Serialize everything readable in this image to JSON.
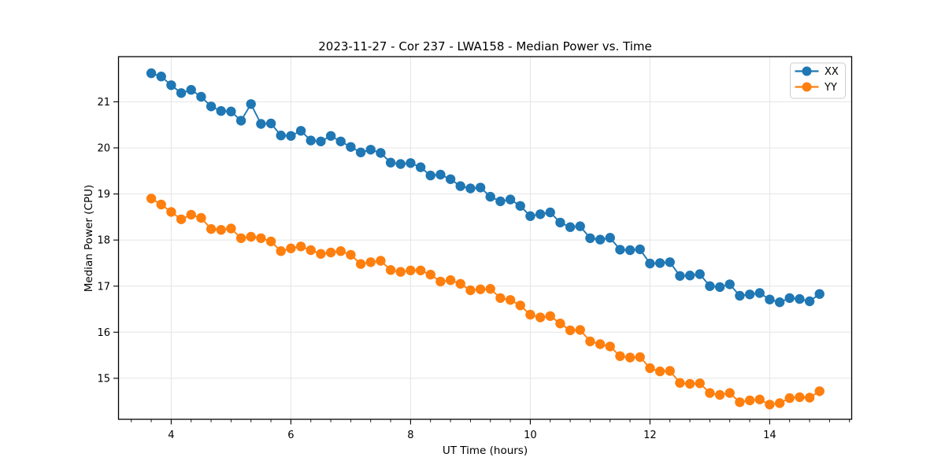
{
  "figure": {
    "title": "2023-11-27 - Cor 237 - LWA158 - Median Power vs. Time",
    "xlabel": "UT Time (hours)",
    "ylabel": "Median Power (CPU)"
  },
  "chart_data": {
    "type": "line",
    "title": "2023-11-27 - Cor 237 - LWA158 - Median Power vs. Time",
    "xlabel": "UT Time (hours)",
    "ylabel": "Median Power (CPU)",
    "grid": true,
    "legend_position": "upper right",
    "xlim": [
      3.12,
      15.37
    ],
    "ylim": [
      14.11,
      21.98
    ],
    "x_ticks": [
      4,
      6,
      8,
      10,
      12,
      14
    ],
    "y_ticks": [
      15,
      16,
      17,
      18,
      19,
      20,
      21
    ],
    "x_minor_step": 0.3333333,
    "marker": "o",
    "x": [
      3.667,
      3.833,
      4.0,
      4.167,
      4.333,
      4.5,
      4.667,
      4.833,
      5.0,
      5.167,
      5.333,
      5.5,
      5.667,
      5.833,
      6.0,
      6.167,
      6.333,
      6.5,
      6.667,
      6.833,
      7.0,
      7.167,
      7.333,
      7.5,
      7.667,
      7.833,
      8.0,
      8.167,
      8.333,
      8.5,
      8.667,
      8.833,
      9.0,
      9.167,
      9.333,
      9.5,
      9.667,
      9.833,
      10.0,
      10.167,
      10.333,
      10.5,
      10.667,
      10.833,
      11.0,
      11.167,
      11.333,
      11.5,
      11.667,
      11.833,
      12.0,
      12.167,
      12.333,
      12.5,
      12.667,
      12.833,
      13.0,
      13.167,
      13.333,
      13.5,
      13.667,
      13.833,
      14.0,
      14.167,
      14.333,
      14.5,
      14.667,
      14.833
    ],
    "series": [
      {
        "name": "XX",
        "color": "#1f77b4",
        "values": [
          21.62,
          21.55,
          21.36,
          21.19,
          21.26,
          21.11,
          20.9,
          20.8,
          20.79,
          20.59,
          20.95,
          20.52,
          20.53,
          20.27,
          20.26,
          20.37,
          20.16,
          20.14,
          20.26,
          20.14,
          20.02,
          19.9,
          19.96,
          19.89,
          19.68,
          19.65,
          19.67,
          19.58,
          19.4,
          19.42,
          19.32,
          19.17,
          19.12,
          19.14,
          18.94,
          18.84,
          18.88,
          18.74,
          18.52,
          18.56,
          18.6,
          18.38,
          18.28,
          18.3,
          18.04,
          18.01,
          18.05,
          17.79,
          17.78,
          17.8,
          17.49,
          17.5,
          17.52,
          17.22,
          17.23,
          17.26,
          17.0,
          16.98,
          17.04,
          16.79,
          16.82,
          16.85,
          16.71,
          16.65,
          16.74,
          16.72,
          16.67,
          16.83
        ]
      },
      {
        "name": "YY",
        "color": "#ff7f0e",
        "values": [
          18.9,
          18.77,
          18.61,
          18.45,
          18.55,
          18.48,
          18.24,
          18.22,
          18.25,
          18.04,
          18.07,
          18.04,
          17.97,
          17.76,
          17.82,
          17.86,
          17.78,
          17.7,
          17.73,
          17.76,
          17.68,
          17.48,
          17.52,
          17.55,
          17.35,
          17.31,
          17.34,
          17.34,
          17.25,
          17.1,
          17.13,
          17.05,
          16.91,
          16.93,
          16.94,
          16.74,
          16.7,
          16.58,
          16.38,
          16.32,
          16.35,
          16.19,
          16.04,
          16.05,
          15.8,
          15.74,
          15.69,
          15.48,
          15.45,
          15.46,
          15.22,
          15.15,
          15.16,
          14.9,
          14.88,
          14.89,
          14.68,
          14.64,
          14.68,
          14.48,
          14.52,
          14.54,
          14.43,
          14.46,
          14.57,
          14.59,
          14.58,
          14.72
        ]
      }
    ],
    "style": {
      "grid_color": "#e4e4e4",
      "spine_color": "#000000",
      "tick_color": "#000000",
      "legend_border_color": "#cccccc",
      "background": "#ffffff"
    }
  }
}
